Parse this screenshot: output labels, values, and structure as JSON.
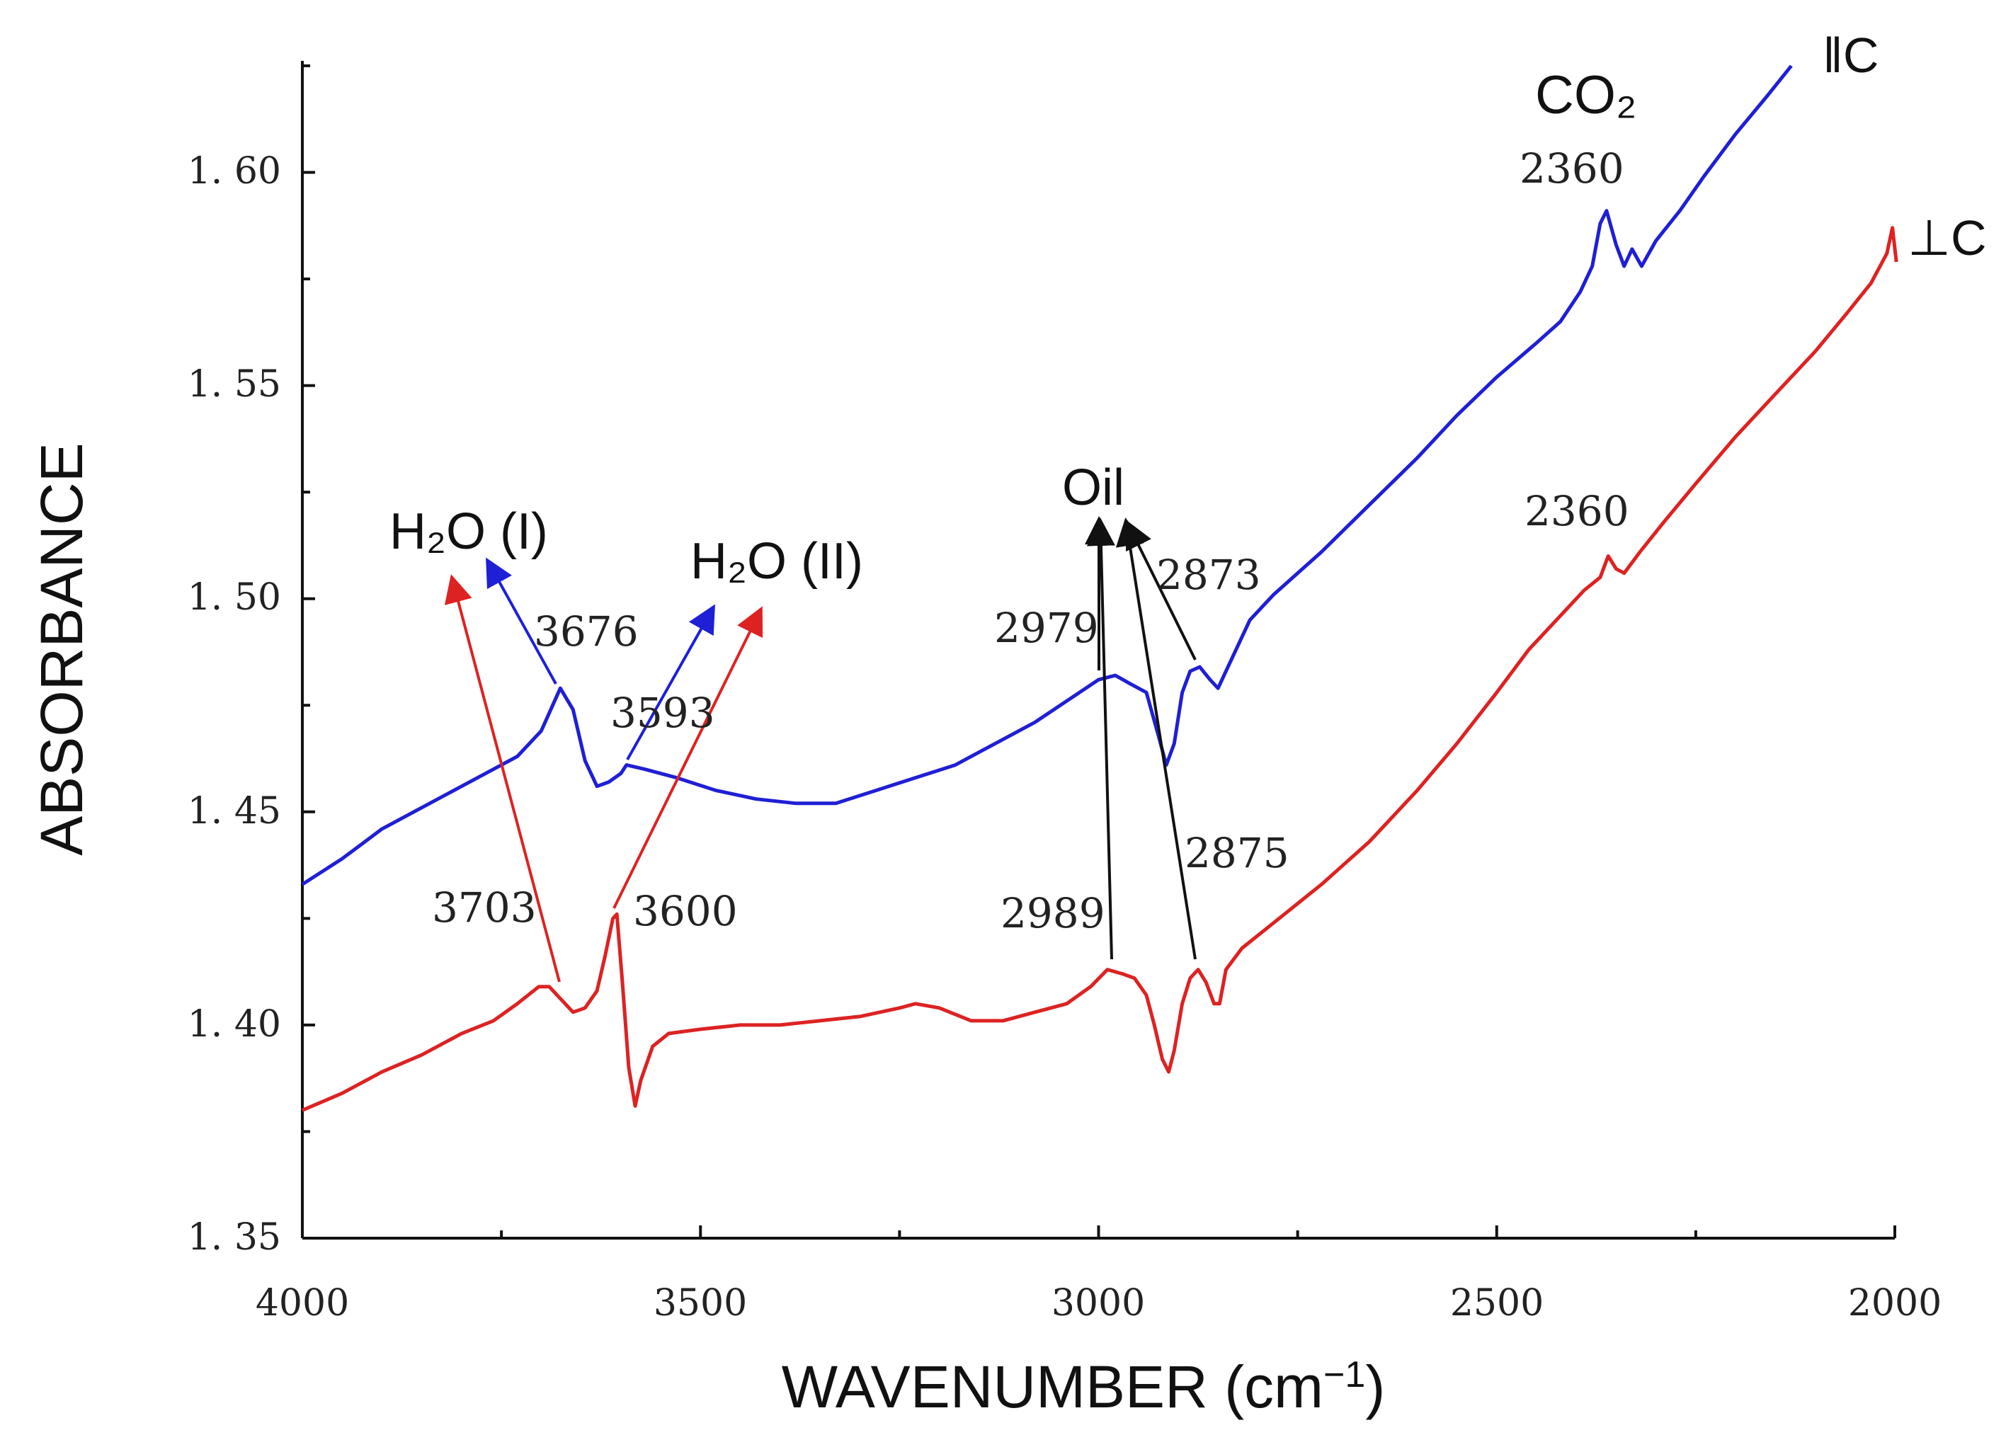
{
  "chart_data": {
    "type": "line",
    "title": "",
    "xlabel": "WAVENUMBER (cm",
    "xlabel_sup": "−1",
    "xlabel_close": ")",
    "ylabel": "ABSORBANCE",
    "xlim": [
      4000,
      2000
    ],
    "ylim": [
      1.35,
      1.625
    ],
    "x_ticks": [
      4000,
      3500,
      3000,
      2500,
      2000
    ],
    "x_tick_labels": [
      "4000",
      "3500",
      "3000",
      "2500",
      "2000"
    ],
    "y_ticks": [
      1.35,
      1.4,
      1.45,
      1.5,
      1.55,
      1.6
    ],
    "y_tick_labels": [
      "1. 35",
      "1. 40",
      "1. 45",
      "1. 50",
      "1. 55",
      "1. 60"
    ],
    "series": [
      {
        "name": "‖C",
        "label": "‖C",
        "color": "#1f1fd6",
        "points": [
          [
            4000,
            1.433
          ],
          [
            3950,
            1.439
          ],
          [
            3900,
            1.446
          ],
          [
            3850,
            1.451
          ],
          [
            3800,
            1.456
          ],
          [
            3760,
            1.46
          ],
          [
            3730,
            1.463
          ],
          [
            3700,
            1.469
          ],
          [
            3676,
            1.479
          ],
          [
            3660,
            1.474
          ],
          [
            3645,
            1.462
          ],
          [
            3630,
            1.456
          ],
          [
            3615,
            1.457
          ],
          [
            3600,
            1.459
          ],
          [
            3593,
            1.461
          ],
          [
            3570,
            1.46
          ],
          [
            3530,
            1.458
          ],
          [
            3480,
            1.455
          ],
          [
            3430,
            1.453
          ],
          [
            3380,
            1.452
          ],
          [
            3330,
            1.452
          ],
          [
            3280,
            1.455
          ],
          [
            3230,
            1.458
          ],
          [
            3180,
            1.461
          ],
          [
            3130,
            1.466
          ],
          [
            3080,
            1.471
          ],
          [
            3040,
            1.476
          ],
          [
            3000,
            1.481
          ],
          [
            2979,
            1.482
          ],
          [
            2960,
            1.48
          ],
          [
            2940,
            1.478
          ],
          [
            2925,
            1.468
          ],
          [
            2915,
            1.461
          ],
          [
            2905,
            1.466
          ],
          [
            2895,
            1.478
          ],
          [
            2885,
            1.483
          ],
          [
            2873,
            1.484
          ],
          [
            2860,
            1.481
          ],
          [
            2850,
            1.479
          ],
          [
            2840,
            1.483
          ],
          [
            2825,
            1.489
          ],
          [
            2810,
            1.495
          ],
          [
            2780,
            1.501
          ],
          [
            2720,
            1.511
          ],
          [
            2660,
            1.522
          ],
          [
            2600,
            1.533
          ],
          [
            2550,
            1.543
          ],
          [
            2500,
            1.552
          ],
          [
            2450,
            1.56
          ],
          [
            2420,
            1.565
          ],
          [
            2395,
            1.572
          ],
          [
            2380,
            1.578
          ],
          [
            2370,
            1.588
          ],
          [
            2362,
            1.591
          ],
          [
            2350,
            1.583
          ],
          [
            2340,
            1.578
          ],
          [
            2330,
            1.582
          ],
          [
            2318,
            1.578
          ],
          [
            2300,
            1.584
          ],
          [
            2270,
            1.591
          ],
          [
            2240,
            1.599
          ],
          [
            2200,
            1.609
          ],
          [
            2160,
            1.618
          ],
          [
            2130,
            1.625
          ]
        ]
      },
      {
        "name": "⊥C",
        "label": "⊥C",
        "color": "#dd2222",
        "points": [
          [
            4000,
            1.38
          ],
          [
            3950,
            1.384
          ],
          [
            3900,
            1.389
          ],
          [
            3850,
            1.393
          ],
          [
            3800,
            1.398
          ],
          [
            3760,
            1.401
          ],
          [
            3730,
            1.405
          ],
          [
            3703,
            1.409
          ],
          [
            3690,
            1.409
          ],
          [
            3675,
            1.406
          ],
          [
            3660,
            1.403
          ],
          [
            3645,
            1.404
          ],
          [
            3630,
            1.408
          ],
          [
            3620,
            1.416
          ],
          [
            3610,
            1.425
          ],
          [
            3605,
            1.426
          ],
          [
            3598,
            1.41
          ],
          [
            3590,
            1.39
          ],
          [
            3582,
            1.381
          ],
          [
            3575,
            1.387
          ],
          [
            3560,
            1.395
          ],
          [
            3540,
            1.398
          ],
          [
            3500,
            1.399
          ],
          [
            3450,
            1.4
          ],
          [
            3400,
            1.4
          ],
          [
            3350,
            1.401
          ],
          [
            3300,
            1.402
          ],
          [
            3250,
            1.404
          ],
          [
            3230,
            1.405
          ],
          [
            3200,
            1.404
          ],
          [
            3160,
            1.401
          ],
          [
            3120,
            1.401
          ],
          [
            3080,
            1.403
          ],
          [
            3040,
            1.405
          ],
          [
            3010,
            1.409
          ],
          [
            2989,
            1.413
          ],
          [
            2970,
            1.412
          ],
          [
            2955,
            1.411
          ],
          [
            2940,
            1.407
          ],
          [
            2930,
            1.4
          ],
          [
            2920,
            1.392
          ],
          [
            2912,
            1.389
          ],
          [
            2905,
            1.394
          ],
          [
            2895,
            1.405
          ],
          [
            2885,
            1.411
          ],
          [
            2875,
            1.413
          ],
          [
            2865,
            1.41
          ],
          [
            2855,
            1.405
          ],
          [
            2848,
            1.405
          ],
          [
            2840,
            1.413
          ],
          [
            2820,
            1.418
          ],
          [
            2780,
            1.424
          ],
          [
            2720,
            1.433
          ],
          [
            2660,
            1.443
          ],
          [
            2600,
            1.455
          ],
          [
            2550,
            1.466
          ],
          [
            2500,
            1.478
          ],
          [
            2460,
            1.488
          ],
          [
            2420,
            1.496
          ],
          [
            2390,
            1.502
          ],
          [
            2370,
            1.505
          ],
          [
            2360,
            1.51
          ],
          [
            2350,
            1.507
          ],
          [
            2340,
            1.506
          ],
          [
            2320,
            1.511
          ],
          [
            2290,
            1.518
          ],
          [
            2250,
            1.527
          ],
          [
            2200,
            1.538
          ],
          [
            2150,
            1.548
          ],
          [
            2100,
            1.558
          ],
          [
            2060,
            1.567
          ],
          [
            2030,
            1.574
          ],
          [
            2010,
            1.581
          ],
          [
            2003,
            1.587
          ],
          [
            1998,
            1.579
          ]
        ]
      }
    ],
    "annotations": {
      "h2o_1": "H₂O (I)",
      "h2o_2": "H₂O (II)",
      "oil": "Oil",
      "co2": "CO₂",
      "peaks": [
        "3676",
        "3593",
        "3703",
        "3600",
        "2979",
        "2873",
        "2989",
        "2875",
        "2360",
        "2360"
      ]
    }
  }
}
